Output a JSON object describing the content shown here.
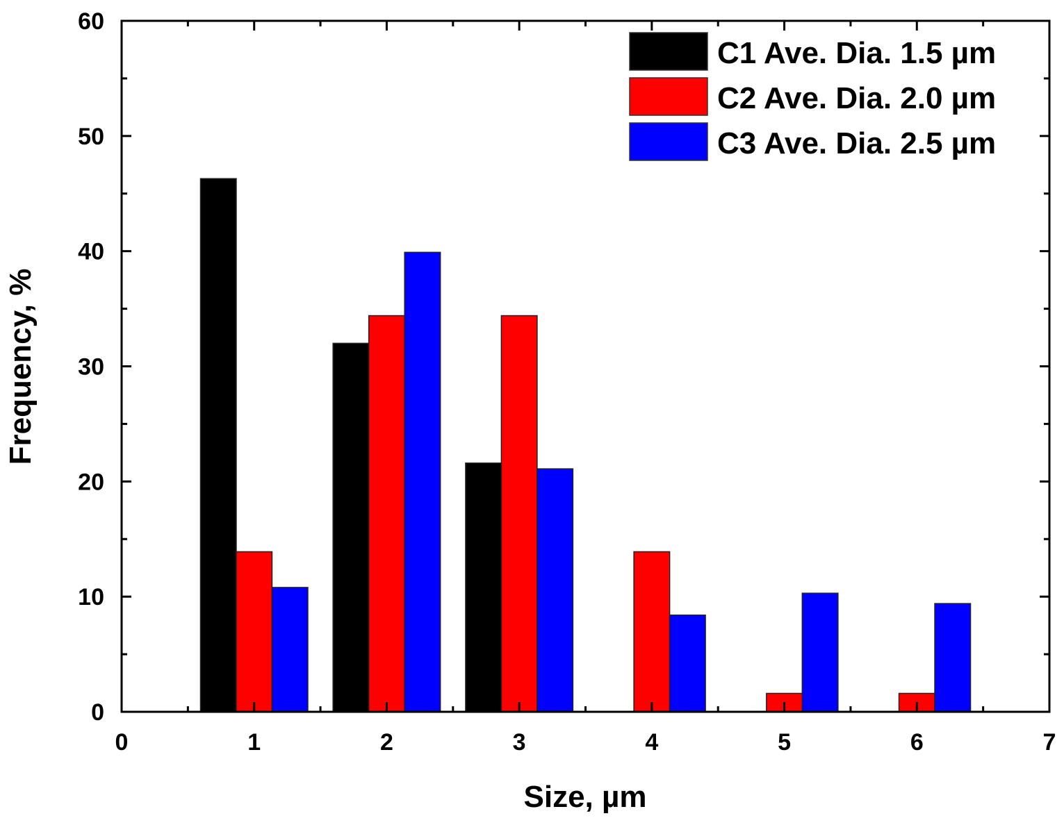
{
  "chart_data": {
    "type": "bar",
    "title": "",
    "xlabel": "Size, µm",
    "ylabel": "Frequency, %",
    "xlim": [
      0,
      7
    ],
    "ylim": [
      0,
      60
    ],
    "x_ticks": [
      "0",
      "1",
      "2",
      "3",
      "4",
      "5",
      "6",
      "7"
    ],
    "y_ticks": [
      "0",
      "10",
      "20",
      "30",
      "40",
      "50",
      "60"
    ],
    "categories": [
      1,
      2,
      3,
      4,
      5,
      6
    ],
    "series": [
      {
        "name": "C1 Ave. Dia. 1.5 µm",
        "color": "#000000",
        "values": [
          46.3,
          32.0,
          21.6,
          0,
          0,
          0
        ]
      },
      {
        "name": "C2 Ave. Dia. 2.0 µm",
        "color": "#ff0000",
        "values": [
          13.9,
          34.4,
          34.4,
          13.9,
          1.6,
          1.6
        ]
      },
      {
        "name": "C3 Ave. Dia. 2.5 µm",
        "color": "#0000ff",
        "values": [
          10.8,
          39.9,
          21.1,
          8.4,
          10.3,
          9.4
        ]
      }
    ],
    "legend_position": "top-right",
    "grid": false
  }
}
